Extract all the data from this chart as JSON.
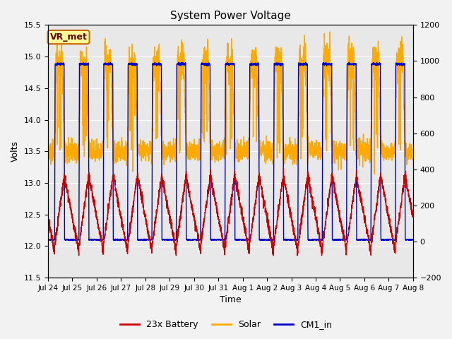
{
  "title": "System Power Voltage",
  "xlabel": "Time",
  "ylabel": "Volts",
  "annotation": "VR_met",
  "ylim_left": [
    11.5,
    15.5
  ],
  "ylim_right": [
    -200,
    1200
  ],
  "yticks_left": [
    11.5,
    12.0,
    12.5,
    13.0,
    13.5,
    14.0,
    14.5,
    15.0,
    15.5
  ],
  "yticks_right": [
    -200,
    0,
    200,
    400,
    600,
    800,
    1000,
    1200
  ],
  "n_days": 15,
  "colors": {
    "battery": "#cc0000",
    "solar": "#ffaa00",
    "cm1": "#0000cc",
    "background": "#e8e8e8",
    "annotation_bg": "#ffff99",
    "annotation_border": "#cc6600"
  },
  "legend_labels": [
    "23x Battery",
    "Solar",
    "CM1_in"
  ],
  "title_fontsize": 11,
  "label_fontsize": 9,
  "tick_fontsize": 8,
  "legend_fontsize": 9,
  "grid_color": "#ffffff",
  "linewidth": 1.0
}
